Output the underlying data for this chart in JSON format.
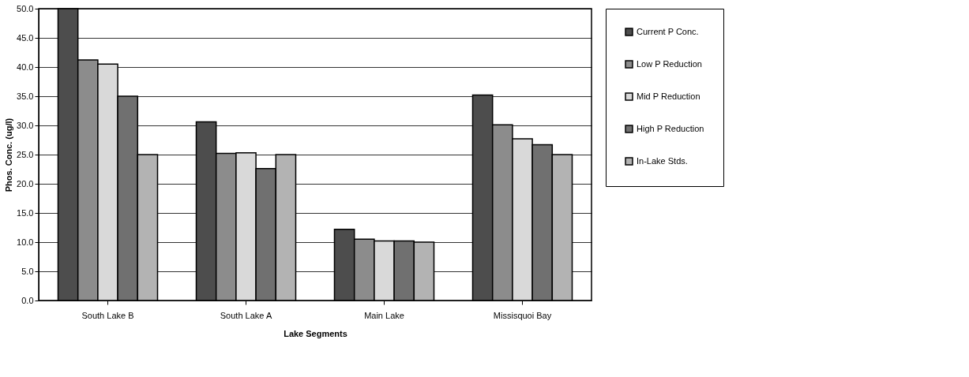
{
  "chart_data": {
    "type": "bar",
    "xlabel": "Lake Segments",
    "ylabel": "Phos. Conc. (ug/l)",
    "categories": [
      "South Lake B",
      "South Lake A",
      "Main Lake",
      "Missisquoi Bay"
    ],
    "series": [
      {
        "name": "Current P Conc.",
        "color": "#4d4d4d",
        "values": [
          50.0,
          30.6,
          12.2,
          35.2
        ]
      },
      {
        "name": "Low P Reduction",
        "color": "#8c8c8c",
        "values": [
          41.2,
          25.2,
          10.5,
          30.1
        ]
      },
      {
        "name": "Mid P Reduction",
        "color": "#d9d9d9",
        "values": [
          40.5,
          25.3,
          10.2,
          27.7
        ]
      },
      {
        "name": "High P Reduction",
        "color": "#707070",
        "values": [
          35.0,
          22.6,
          10.2,
          26.7
        ]
      },
      {
        "name": "In-Lake Stds.",
        "color": "#b3b3b3",
        "values": [
          25.0,
          25.0,
          10.0,
          25.0
        ]
      }
    ],
    "ylim": [
      0,
      50
    ],
    "yticks": [
      {
        "value": 0,
        "label": "0.0"
      },
      {
        "value": 5,
        "label": "5.0"
      },
      {
        "value": 10,
        "label": "10.0"
      },
      {
        "value": 15,
        "label": "15.0"
      },
      {
        "value": 20,
        "label": "20.0"
      },
      {
        "value": 25,
        "label": "25.0"
      },
      {
        "value": 30,
        "label": "30.0"
      },
      {
        "value": 35,
        "label": "35.0"
      },
      {
        "value": 40,
        "label": "40.0"
      },
      {
        "value": 45,
        "label": "45.0"
      },
      {
        "value": 50,
        "label": "50.0"
      }
    ],
    "grid": "y",
    "legend": "right"
  }
}
